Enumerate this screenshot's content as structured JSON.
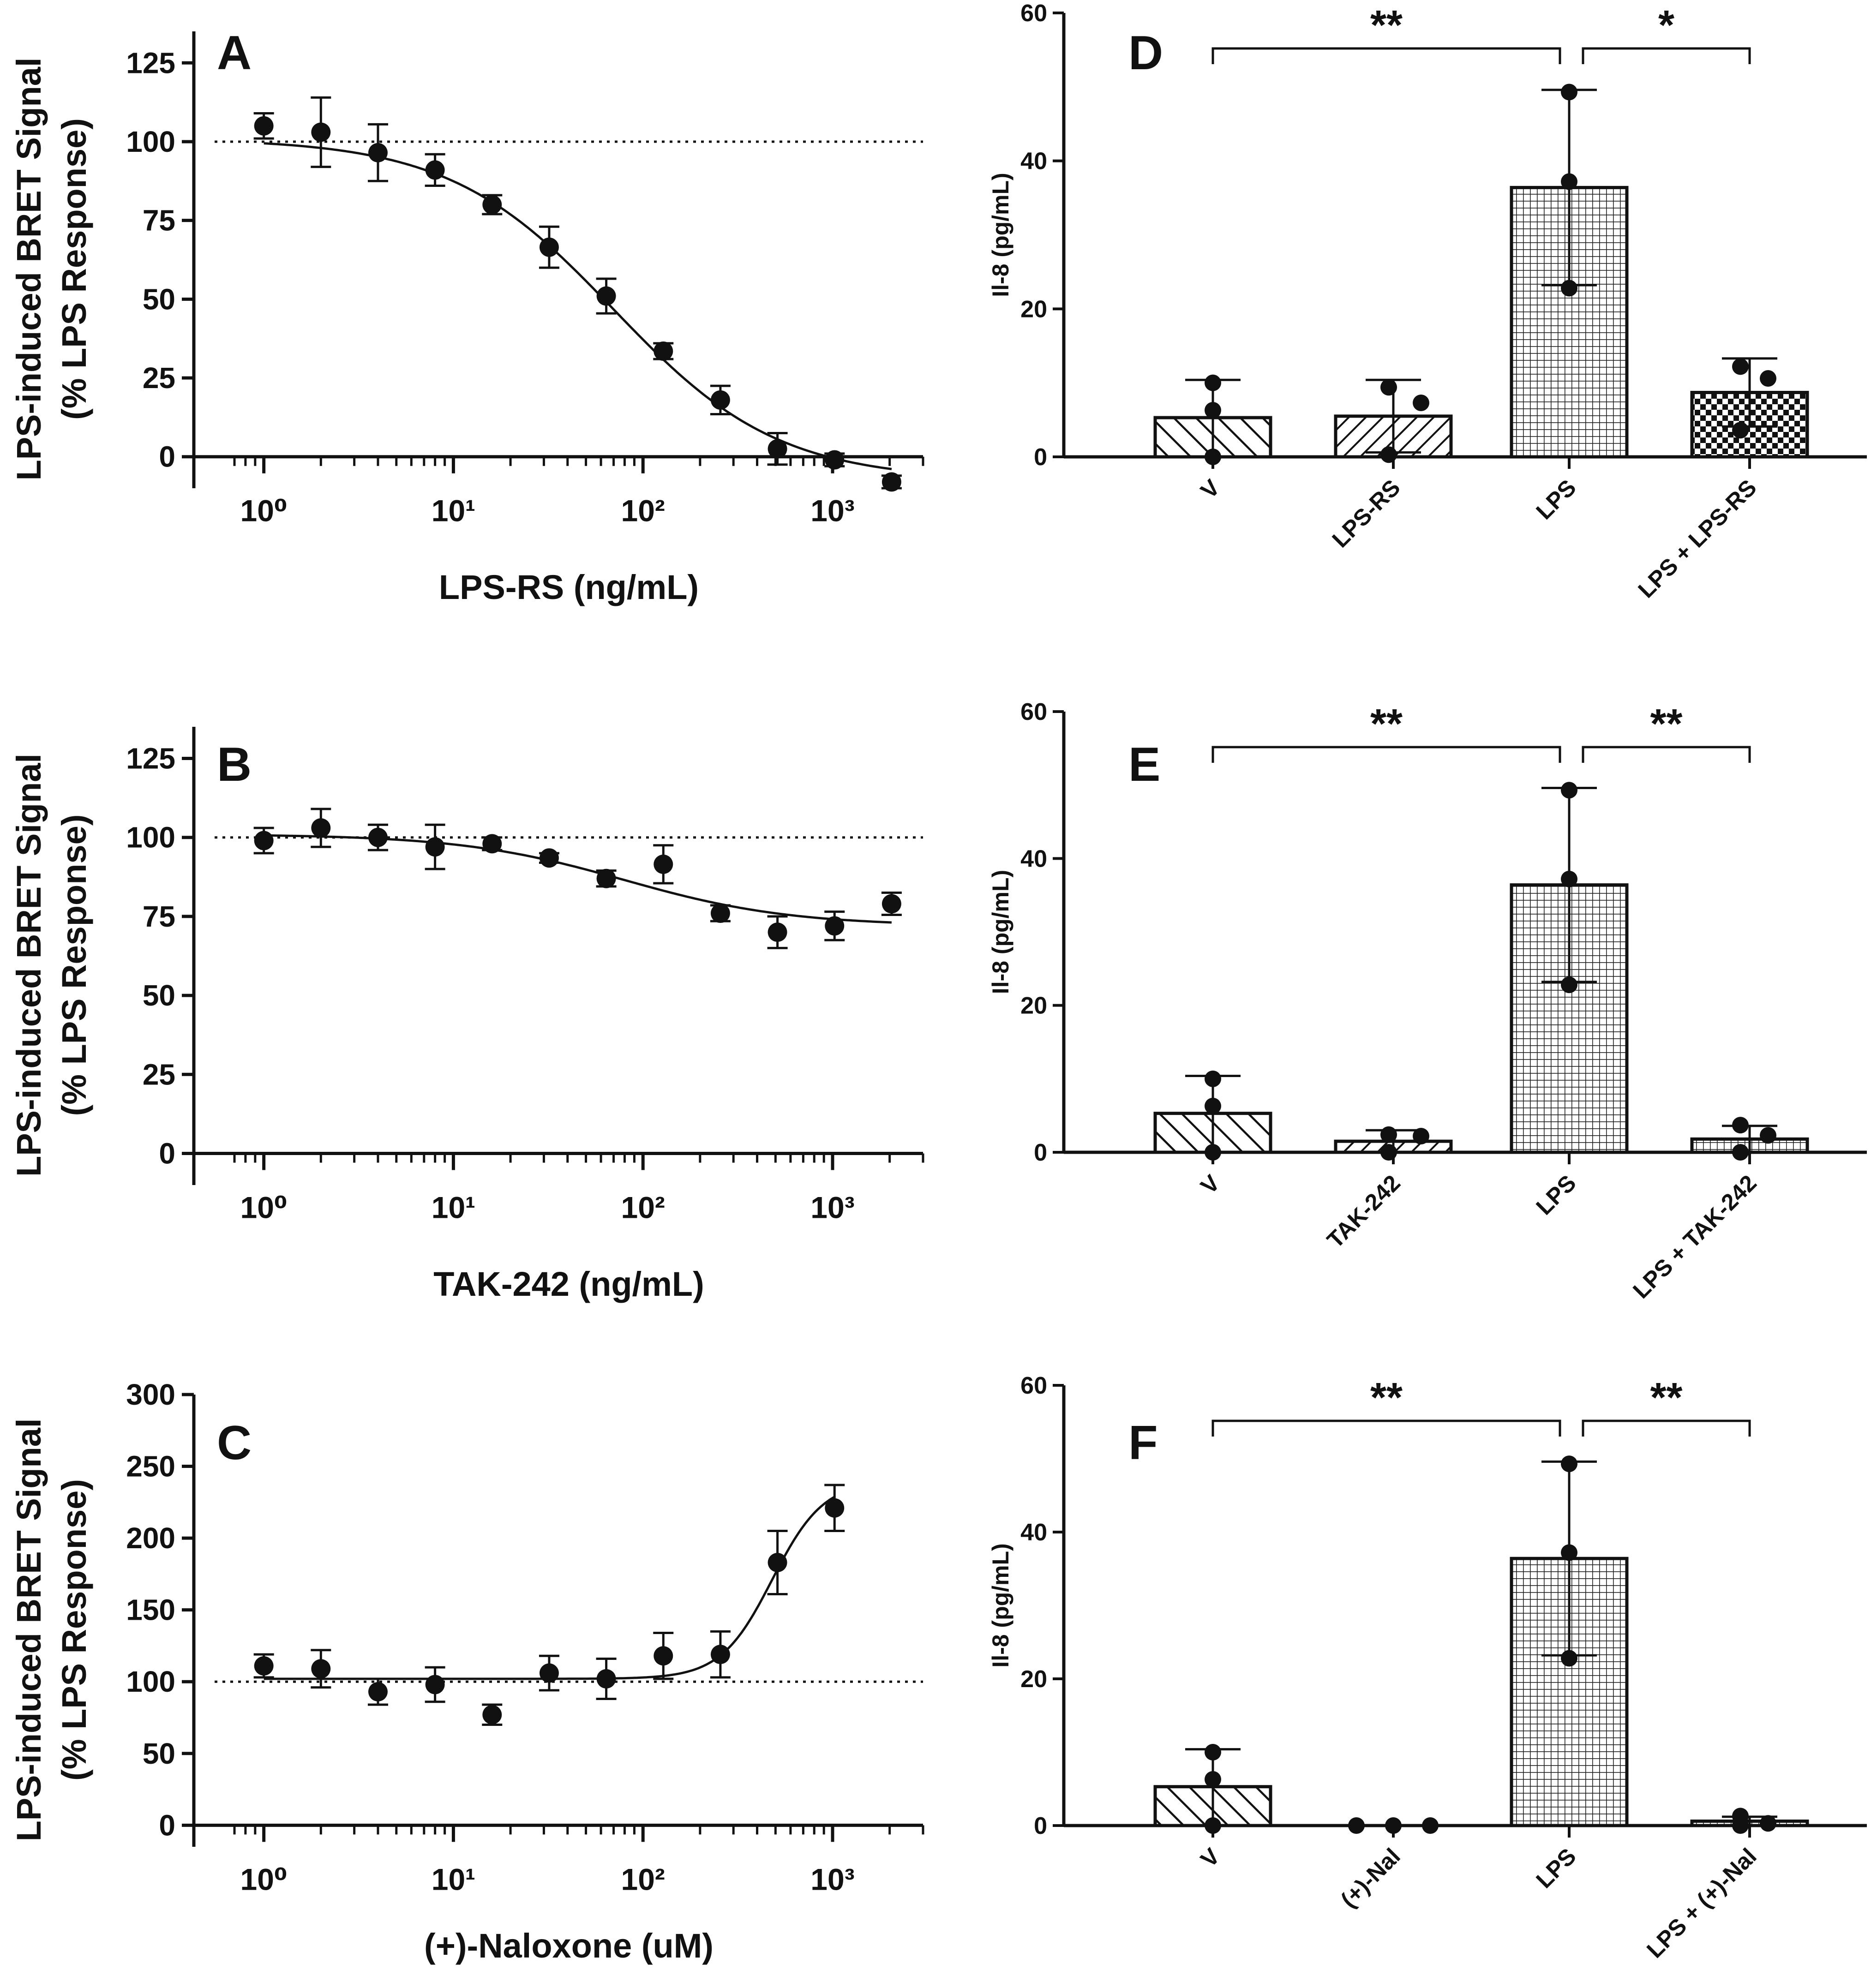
{
  "chart_data": [
    {
      "panel": "A",
      "type": "scatter",
      "xscale": "log",
      "xlim": [
        0.55,
        3000
      ],
      "ylim": [
        -10,
        135
      ],
      "yticks": [
        0,
        25,
        50,
        75,
        100,
        125
      ],
      "xlabel": "LPS-RS (ng/mL)",
      "ylabel": [
        "LPS-induced BRET Signal",
        "(% LPS Response)"
      ],
      "reference_lines": [
        100
      ],
      "x": [
        1,
        2,
        4,
        8,
        16,
        32,
        64,
        128,
        256,
        512,
        1024,
        2048
      ],
      "y": [
        105,
        103,
        96.5,
        91,
        80,
        66.5,
        51,
        33.5,
        18,
        2.5,
        -1,
        -8
      ],
      "err": [
        4,
        11,
        9,
        5,
        3,
        6.5,
        5.5,
        2.5,
        4.5,
        5,
        2,
        2
      ],
      "fit": {
        "model": "4PL",
        "top": 101,
        "bottom": -7.5,
        "ec50": 70,
        "hill": 1
      }
    },
    {
      "panel": "B",
      "type": "scatter",
      "xscale": "log",
      "xlim": [
        0.55,
        3000
      ],
      "ylim": [
        -10,
        135
      ],
      "yticks": [
        0,
        25,
        50,
        75,
        100,
        125
      ],
      "xlabel": "TAK-242 (ng/mL)",
      "ylabel": [
        "LPS-induced BRET Signal",
        "(% LPS Response)"
      ],
      "reference_lines": [
        100,
        0
      ],
      "x": [
        1,
        2,
        4,
        8,
        16,
        32,
        64,
        128,
        256,
        512,
        1024,
        2048
      ],
      "y": [
        99,
        103,
        100,
        97,
        98,
        93.5,
        87,
        91.5,
        76,
        70,
        72,
        79
      ],
      "err": [
        4,
        6,
        4,
        7,
        2,
        1.5,
        2.5,
        6,
        2.5,
        5,
        4.5,
        3.5
      ],
      "fit": {
        "model": "4PL",
        "top": 101,
        "bottom": 72,
        "ec50": 80,
        "hill": 1
      }
    },
    {
      "panel": "C",
      "type": "scatter",
      "xscale": "log",
      "xlim": [
        0.55,
        3000
      ],
      "ylim": [
        -15,
        300
      ],
      "yticks": [
        0,
        50,
        100,
        150,
        200,
        250,
        300
      ],
      "xlabel": "(+)-Naloxone (uM)",
      "ylabel": [
        "LPS-induced BRET Signal",
        "(% LPS Response)"
      ],
      "reference_lines": [
        100
      ],
      "x": [
        1,
        2,
        4,
        8,
        16,
        32,
        64,
        128,
        256,
        512,
        1024
      ],
      "y": [
        111,
        109,
        93,
        98,
        77,
        106,
        102,
        118,
        119,
        183,
        221
      ],
      "err": [
        8,
        13,
        9,
        12,
        7,
        12,
        14,
        16,
        16,
        22,
        16
      ],
      "fit": {
        "model": "4PL",
        "top": 240,
        "bottom": 102,
        "ec50": 480,
        "hill": 3.2
      }
    },
    {
      "panel": "D",
      "type": "bar",
      "ylabel": "Il-8 (pg/mL)",
      "ylim": [
        0,
        60
      ],
      "yticks": [
        0,
        20,
        40,
        60
      ],
      "categories": [
        "V",
        "LPS-RS",
        "LPS",
        "LPS + LPS-RS"
      ],
      "values": [
        5.3,
        5.5,
        36.4,
        8.7
      ],
      "err": [
        5.1,
        4.9,
        13.2,
        4.6
      ],
      "points": [
        [
          10,
          6.3,
          0
        ],
        [
          9.4,
          7.3,
          0.3
        ],
        [
          49.3,
          37.2,
          22.8
        ],
        [
          12.2,
          10.6,
          3.6
        ]
      ],
      "patterns": [
        "diag-wide",
        "diag-dense",
        "grid-fine",
        "checker"
      ],
      "significance": [
        {
          "from": 0,
          "to": 2,
          "label": "**"
        },
        {
          "from": 2,
          "to": 3,
          "label": "*"
        }
      ]
    },
    {
      "panel": "E",
      "type": "bar",
      "ylabel": "Il-8 (pg/mL)",
      "ylim": [
        0,
        60
      ],
      "yticks": [
        0,
        20,
        40,
        60
      ],
      "categories": [
        "V",
        "TAK-242",
        "LPS",
        "LPS + TAK-242"
      ],
      "values": [
        5.3,
        1.5,
        36.4,
        1.8
      ],
      "err": [
        5.1,
        1.5,
        13.2,
        1.8
      ],
      "points": [
        [
          10,
          6.3,
          0
        ],
        [
          2.4,
          2.2,
          0
        ],
        [
          49.3,
          37.2,
          22.8
        ],
        [
          3.7,
          2.3,
          0
        ]
      ],
      "patterns": [
        "diag-wide",
        "diag-dense",
        "grid-fine",
        "grid-fine"
      ],
      "significance": [
        {
          "from": 0,
          "to": 2,
          "label": "**"
        },
        {
          "from": 2,
          "to": 3,
          "label": "**"
        }
      ]
    },
    {
      "panel": "F",
      "type": "bar",
      "ylabel": "Il-8 (pg/mL)",
      "ylim": [
        0,
        60
      ],
      "yticks": [
        0,
        20,
        40,
        60
      ],
      "categories": [
        "V",
        "(+)-Nal",
        "LPS",
        "LPS + (+)-Nal"
      ],
      "values": [
        5.3,
        0,
        36.4,
        0.6
      ],
      "err": [
        5.1,
        0,
        13.2,
        0.6
      ],
      "points": [
        [
          10,
          6.3,
          0
        ],
        [
          0,
          0,
          0
        ],
        [
          49.3,
          37.2,
          22.8
        ],
        [
          1.3,
          0.3,
          0
        ]
      ],
      "patterns": [
        "diag-wide",
        "none",
        "grid-fine",
        "grid-fine"
      ],
      "significance": [
        {
          "from": 0,
          "to": 2,
          "label": "**"
        },
        {
          "from": 2,
          "to": 3,
          "label": "**"
        }
      ]
    }
  ]
}
